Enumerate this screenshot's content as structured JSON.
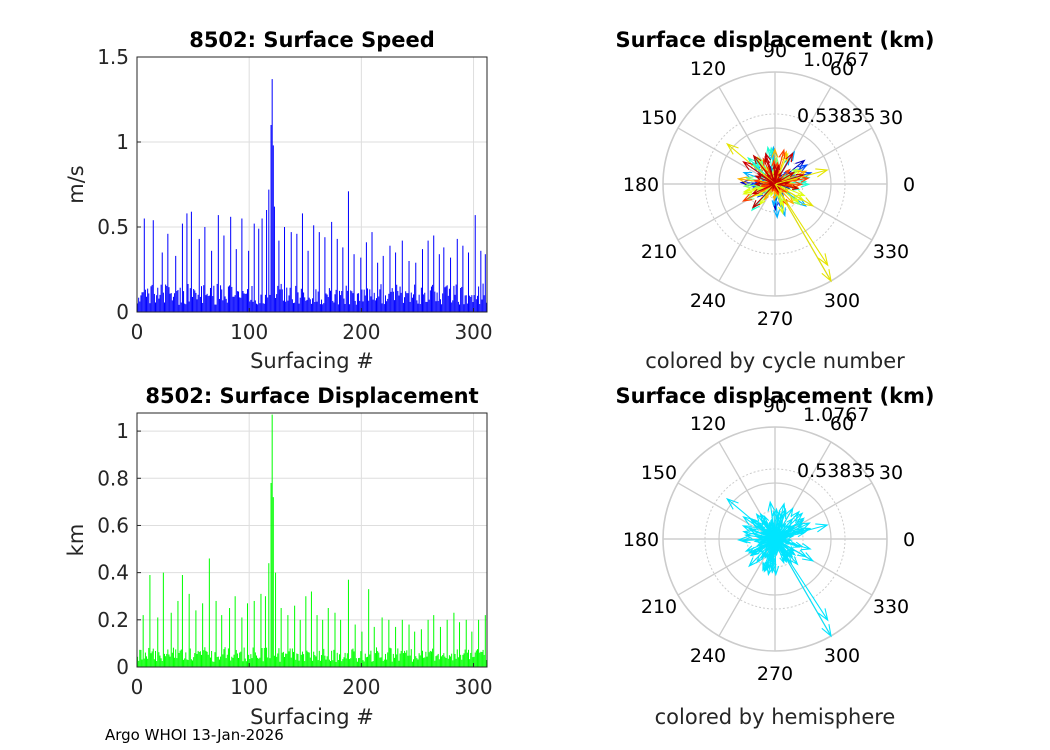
{
  "colors": {
    "speed_bar": "#0000ff",
    "disp_bar": "#00ff00",
    "hemisphere_arrow": "#00e5ff",
    "grid": "#dedede",
    "polar_grid": "#cccccc",
    "axis": "#262626"
  },
  "footer": {
    "text": "Argo WHOI 13-Jan-2026"
  },
  "chart_data": [
    {
      "id": "speed",
      "type": "bar",
      "title": "8502: Surface Speed",
      "xlabel": "Surfacing #",
      "ylabel": "m/s",
      "xlim": [
        0,
        312
      ],
      "ylim": [
        0,
        1.5
      ],
      "xticks": [
        0,
        100,
        200,
        300
      ],
      "yticks": [
        0,
        0.5,
        1,
        1.5
      ],
      "xtick_labels": [
        "0",
        "100",
        "200",
        "300"
      ],
      "ytick_labels": [
        "0",
        "0.5",
        "1",
        "1.5"
      ],
      "n_points": 312,
      "base_level": 0.14,
      "peaks": [
        [
          6,
          0.55
        ],
        [
          14,
          0.54
        ],
        [
          22,
          0.35
        ],
        [
          27,
          0.46
        ],
        [
          34,
          0.33
        ],
        [
          40,
          0.52
        ],
        [
          44,
          0.58
        ],
        [
          48,
          0.59
        ],
        [
          55,
          0.43
        ],
        [
          60,
          0.5
        ],
        [
          66,
          0.36
        ],
        [
          72,
          0.57
        ],
        [
          77,
          0.45
        ],
        [
          83,
          0.56
        ],
        [
          88,
          0.37
        ],
        [
          93,
          0.55
        ],
        [
          99,
          0.36
        ],
        [
          104,
          0.52
        ],
        [
          108,
          0.49
        ],
        [
          111,
          0.55
        ],
        [
          115,
          0.6
        ],
        [
          117,
          0.72
        ],
        [
          119,
          1.1
        ],
        [
          120,
          1.37
        ],
        [
          121,
          0.98
        ],
        [
          122,
          0.62
        ],
        [
          126,
          0.42
        ],
        [
          131,
          0.5
        ],
        [
          137,
          0.47
        ],
        [
          142,
          0.46
        ],
        [
          147,
          0.58
        ],
        [
          152,
          0.36
        ],
        [
          157,
          0.51
        ],
        [
          162,
          0.47
        ],
        [
          167,
          0.44
        ],
        [
          173,
          0.53
        ],
        [
          178,
          0.43
        ],
        [
          183,
          0.38
        ],
        [
          188,
          0.71
        ],
        [
          193,
          0.34
        ],
        [
          199,
          0.32
        ],
        [
          204,
          0.41
        ],
        [
          209,
          0.47
        ],
        [
          214,
          0.29
        ],
        [
          219,
          0.33
        ],
        [
          225,
          0.39
        ],
        [
          230,
          0.35
        ],
        [
          236,
          0.42
        ],
        [
          242,
          0.3
        ],
        [
          248,
          0.29
        ],
        [
          254,
          0.37
        ],
        [
          259,
          0.42
        ],
        [
          264,
          0.45
        ],
        [
          269,
          0.34
        ],
        [
          273,
          0.38
        ],
        [
          279,
          0.32
        ],
        [
          285,
          0.43
        ],
        [
          290,
          0.39
        ],
        [
          295,
          0.35
        ],
        [
          301,
          0.57
        ],
        [
          306,
          0.36
        ],
        [
          310,
          0.34
        ]
      ]
    },
    {
      "id": "displacement",
      "type": "bar",
      "title": "8502: Surface Displacement",
      "xlabel": "Surfacing #",
      "ylabel": "km",
      "xlim": [
        0,
        312
      ],
      "ylim": [
        0,
        1.0767
      ],
      "xticks": [
        0,
        100,
        200,
        300
      ],
      "yticks": [
        0,
        0.2,
        0.4,
        0.6,
        0.8,
        1
      ],
      "xtick_labels": [
        "0",
        "100",
        "200",
        "300"
      ],
      "ytick_labels": [
        "0",
        "0.2",
        "0.4",
        "0.6",
        "0.8",
        "1"
      ],
      "n_points": 312,
      "base_level": 0.07,
      "peaks": [
        [
          5,
          0.22
        ],
        [
          11,
          0.39
        ],
        [
          18,
          0.21
        ],
        [
          23,
          0.4
        ],
        [
          30,
          0.23
        ],
        [
          36,
          0.28
        ],
        [
          40,
          0.39
        ],
        [
          46,
          0.31
        ],
        [
          52,
          0.24
        ],
        [
          58,
          0.27
        ],
        [
          64,
          0.46
        ],
        [
          70,
          0.28
        ],
        [
          75,
          0.22
        ],
        [
          82,
          0.25
        ],
        [
          87,
          0.3
        ],
        [
          93,
          0.21
        ],
        [
          98,
          0.27
        ],
        [
          104,
          0.28
        ],
        [
          110,
          0.31
        ],
        [
          114,
          0.3
        ],
        [
          117,
          0.44
        ],
        [
          119,
          0.78
        ],
        [
          120,
          1.07
        ],
        [
          121,
          0.72
        ],
        [
          123,
          0.4
        ],
        [
          128,
          0.25
        ],
        [
          134,
          0.22
        ],
        [
          140,
          0.26
        ],
        [
          145,
          0.2
        ],
        [
          150,
          0.3
        ],
        [
          155,
          0.32
        ],
        [
          160,
          0.22
        ],
        [
          165,
          0.2
        ],
        [
          170,
          0.25
        ],
        [
          176,
          0.23
        ],
        [
          181,
          0.2
        ],
        [
          188,
          0.37
        ],
        [
          194,
          0.18
        ],
        [
          200,
          0.15
        ],
        [
          206,
          0.33
        ],
        [
          211,
          0.17
        ],
        [
          218,
          0.21
        ],
        [
          224,
          0.2
        ],
        [
          230,
          0.17
        ],
        [
          236,
          0.2
        ],
        [
          242,
          0.18
        ],
        [
          247,
          0.15
        ],
        [
          253,
          0.16
        ],
        [
          259,
          0.2
        ],
        [
          264,
          0.22
        ],
        [
          270,
          0.17
        ],
        [
          276,
          0.2
        ],
        [
          282,
          0.23
        ],
        [
          287,
          0.19
        ],
        [
          293,
          0.2
        ],
        [
          298,
          0.15
        ],
        [
          304,
          0.2
        ],
        [
          310,
          0.22
        ]
      ]
    },
    {
      "id": "polar_cycle",
      "type": "scatter",
      "subtype": "polar-compass",
      "title": "Surface displacement (km)",
      "xlabel": "colored by cycle number",
      "rmax": 1.0767,
      "r_tick_labels": [
        "0.53835",
        "1.0767"
      ],
      "angle_ticks": [
        0,
        30,
        60,
        90,
        120,
        150,
        180,
        210,
        240,
        270,
        300,
        330
      ],
      "angle_labels": [
        "0",
        "30",
        "60",
        "90",
        "120",
        "150",
        "180",
        "210",
        "240",
        "270",
        "300",
        "330"
      ],
      "colormap": [
        "#0000bf",
        "#0050ff",
        "#00b0ff",
        "#20ffd0",
        "#80ff70",
        "#e0ff10",
        "#ffb000",
        "#ff4000",
        "#c00000"
      ],
      "n_arrows": 312,
      "major_arrows": [
        {
          "angle": 300,
          "r": 1.0767,
          "color": "#e5e500"
        },
        {
          "angle": 303,
          "r": 0.93,
          "color": "#e5e500"
        },
        {
          "angle": 140,
          "r": 0.6,
          "color": "#e5e500"
        },
        {
          "angle": 15,
          "r": 0.52,
          "color": "#e5e500"
        },
        {
          "angle": 330,
          "r": 0.42,
          "color": "#e5e500"
        },
        {
          "angle": 145,
          "r": 0.37,
          "color": "#cc0000"
        },
        {
          "angle": 60,
          "r": 0.34,
          "color": "#cc0000"
        }
      ]
    },
    {
      "id": "polar_hemisphere",
      "type": "scatter",
      "subtype": "polar-compass",
      "title": "Surface displacement (km)",
      "xlabel": "colored by hemisphere",
      "rmax": 1.0767,
      "r_tick_labels": [
        "0.53835",
        "1.0767"
      ],
      "angle_ticks": [
        0,
        30,
        60,
        90,
        120,
        150,
        180,
        210,
        240,
        270,
        300,
        330
      ],
      "angle_labels": [
        "0",
        "30",
        "60",
        "90",
        "120",
        "150",
        "180",
        "210",
        "240",
        "270",
        "300",
        "330"
      ],
      "colormap": [
        "#00e5ff"
      ],
      "n_arrows": 312,
      "major_arrows": [
        {
          "angle": 300,
          "r": 1.0767,
          "color": "#00e5ff"
        },
        {
          "angle": 303,
          "r": 0.93,
          "color": "#00e5ff"
        },
        {
          "angle": 140,
          "r": 0.6,
          "color": "#00e5ff"
        },
        {
          "angle": 15,
          "r": 0.52,
          "color": "#00e5ff"
        },
        {
          "angle": 330,
          "r": 0.42,
          "color": "#00e5ff"
        },
        {
          "angle": 145,
          "r": 0.37,
          "color": "#00e5ff"
        },
        {
          "angle": 60,
          "r": 0.34,
          "color": "#00e5ff"
        }
      ]
    }
  ]
}
